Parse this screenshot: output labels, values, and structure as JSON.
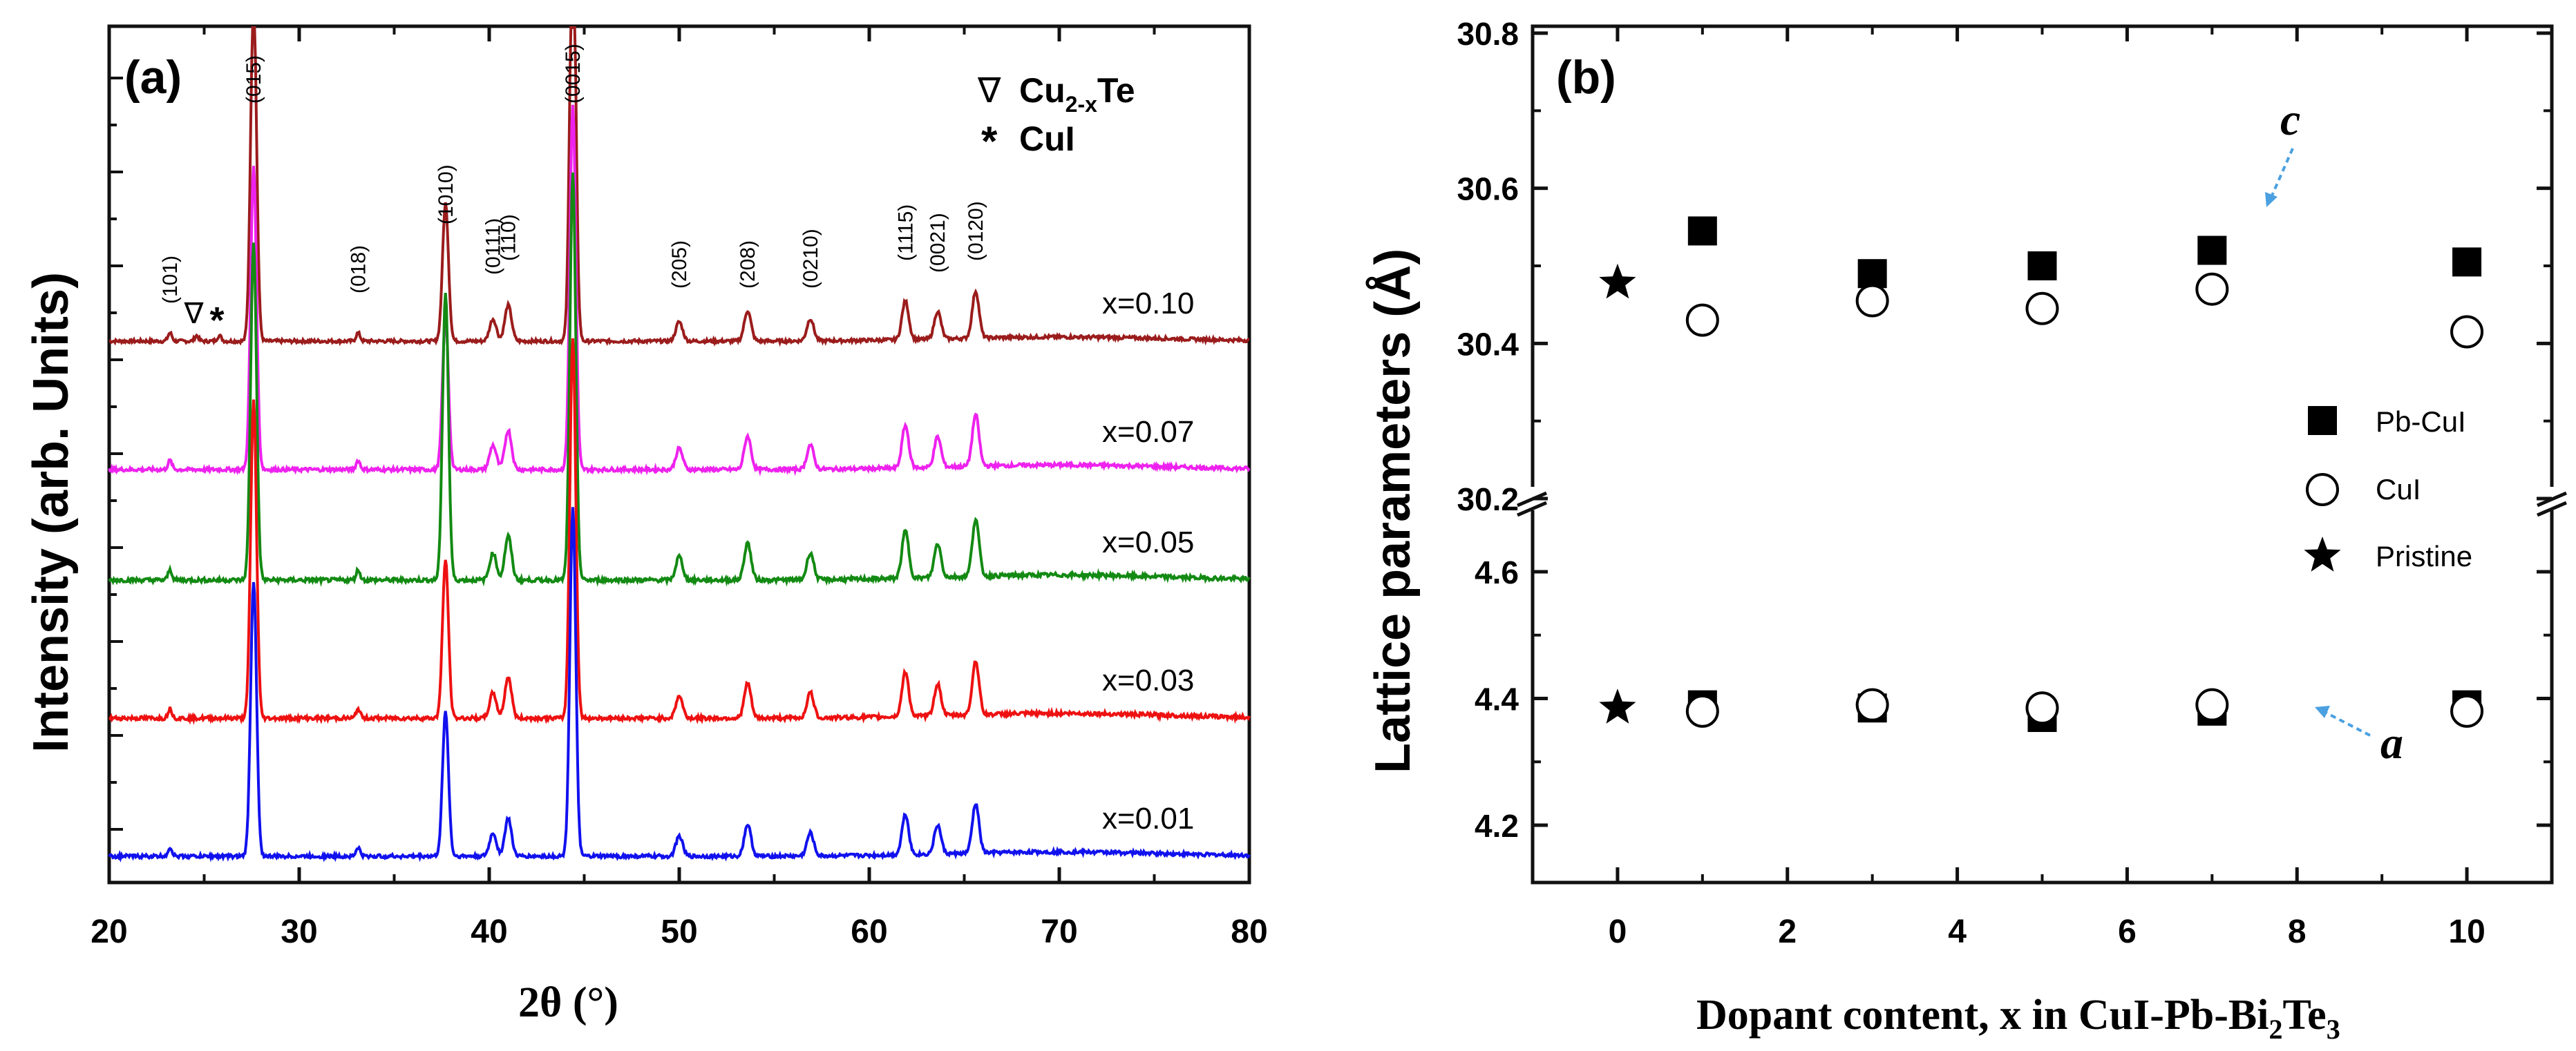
{
  "chart_data": [
    {
      "type": "line",
      "panel_label": "(a)",
      "title": "",
      "xlabel": "2θ (°)",
      "ylabel": "Intensity (arb. Units)",
      "xlim": [
        20,
        80
      ],
      "xticks": [
        "20",
        "30",
        "40",
        "50",
        "60",
        "70",
        "80"
      ],
      "legend": [
        {
          "symbol": "∇",
          "text": "Cu",
          "sub": "2-x",
          "rest": "Te"
        },
        {
          "symbol": "*",
          "text": "CuI",
          "sub": "",
          "rest": ""
        }
      ],
      "series": [
        {
          "name": "x=0.10",
          "color": "#9b1c1c"
        },
        {
          "name": "x=0.07",
          "color": "#ee22ee"
        },
        {
          "name": "x=0.05",
          "color": "#138a13"
        },
        {
          "name": "x=0.03",
          "color": "#ee1111"
        },
        {
          "name": "x=0.01",
          "color": "#1111ee"
        }
      ],
      "peaks": [
        {
          "pos": 23.2,
          "label": "(101)",
          "h": 0.03
        },
        {
          "pos": 27.6,
          "label": "(015)",
          "h": 1.0
        },
        {
          "pos": 33.1,
          "label": "(018)",
          "h": 0.03
        },
        {
          "pos": 37.7,
          "label": "(1010)",
          "h": 0.5
        },
        {
          "pos": 40.2,
          "label": "(0111)",
          "h": 0.08
        },
        {
          "pos": 41.0,
          "label": "(110)",
          "h": 0.13
        },
        {
          "pos": 44.4,
          "label": "(0015)",
          "h": 1.2
        },
        {
          "pos": 50.0,
          "label": "(205)",
          "h": 0.07
        },
        {
          "pos": 53.6,
          "label": "(208)",
          "h": 0.11
        },
        {
          "pos": 56.9,
          "label": "(0210)",
          "h": 0.08
        },
        {
          "pos": 61.9,
          "label": "(1115)",
          "h": 0.14
        },
        {
          "pos": 63.6,
          "label": "(0021)",
          "h": 0.1
        },
        {
          "pos": 65.6,
          "label": "(0120)",
          "h": 0.17
        }
      ],
      "markers": [
        {
          "symbol": "∇",
          "pos": 24.6
        },
        {
          "symbol": "*",
          "pos": 25.8
        }
      ]
    },
    {
      "type": "scatter",
      "panel_label": "(b)",
      "xlabel": "Dopant content, x in CuI-Pb-Bi",
      "xlabel_sub": "2",
      "xlabel_end": "Te",
      "xlabel_sub2": "3",
      "ylabel": "Lattice parameters (Å)",
      "xlim": [
        -1,
        11
      ],
      "xticks": [
        "0",
        "2",
        "4",
        "6",
        "8",
        "10"
      ],
      "yticks_upper": [
        "30.2",
        "30.4",
        "30.6",
        "30.8"
      ],
      "yticks_lower": [
        "4.2",
        "4.4",
        "4.6"
      ],
      "ylim_upper": [
        30.2,
        30.8
      ],
      "ylim_lower": [
        4.1,
        4.7
      ],
      "series": [
        {
          "name": "Pb-CuI",
          "marker": "filled-square",
          "x": [
            1,
            3,
            5,
            7,
            10
          ],
          "c": [
            30.545,
            30.49,
            30.5,
            30.52,
            30.505
          ],
          "a": [
            4.39,
            4.385,
            4.37,
            4.38,
            4.39
          ]
        },
        {
          "name": "CuI",
          "marker": "open-circle",
          "x": [
            1,
            3,
            5,
            7,
            10
          ],
          "c": [
            30.43,
            30.455,
            30.445,
            30.47,
            30.415
          ],
          "a": [
            4.38,
            4.39,
            4.385,
            4.39,
            4.38
          ]
        },
        {
          "name": "Pristine",
          "marker": "star",
          "x": [
            0
          ],
          "c": [
            30.478
          ],
          "a": [
            4.385
          ]
        }
      ],
      "annotations": [
        {
          "text": "c"
        },
        {
          "text": "a"
        }
      ],
      "legend_labels": [
        "Pb-CuI",
        "CuI",
        "Pristine"
      ]
    }
  ]
}
